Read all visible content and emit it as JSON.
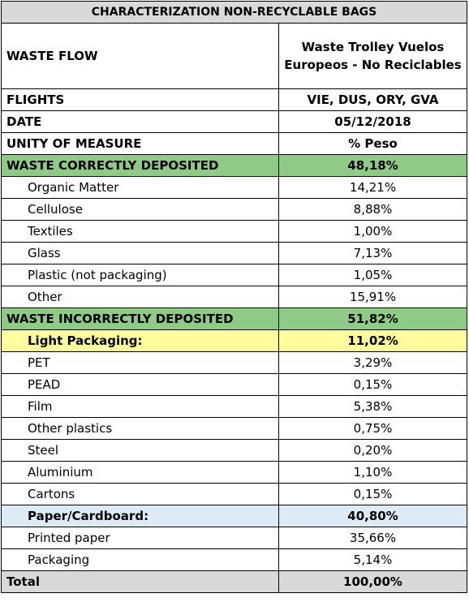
{
  "title": "CHARACTERIZATION NON-RECYCLABLE BAGS",
  "header": {
    "label": "WASTE FLOW",
    "value_line1": "Waste Trolley Vuelos",
    "value_line2": "Europeos - No Reciclables"
  },
  "info_rows": [
    {
      "label": "FLIGHTS",
      "value": "VIE, DUS, ORY, GVA"
    },
    {
      "label": "DATE",
      "value": "05/12/2018"
    },
    {
      "label": "UNITY OF MEASURE",
      "value": "% Peso"
    }
  ],
  "correct": {
    "label": "WASTE CORRECTLY DEPOSITED",
    "value": "48,18%",
    "items": [
      {
        "label": "Organic Matter",
        "value": "14,21%"
      },
      {
        "label": "Cellulose",
        "value": "8,88%"
      },
      {
        "label": "Textiles",
        "value": "1,00%"
      },
      {
        "label": "Glass",
        "value": "7,13%"
      },
      {
        "label": "Plastic (not packaging)",
        "value": "1,05%"
      },
      {
        "label": "Other",
        "value": "15,91%"
      }
    ]
  },
  "incorrect": {
    "label": "WASTE INCORRECTLY DEPOSITED",
    "value": "51,82%",
    "light_packaging": {
      "label": "Light Packaging:",
      "value": "11,02%",
      "items": [
        {
          "label": "PET",
          "value": "3,29%"
        },
        {
          "label": "PEAD",
          "value": "0,15%"
        },
        {
          "label": "Film",
          "value": "5,38%"
        },
        {
          "label": "Other plastics",
          "value": "0,75%"
        },
        {
          "label": "Steel",
          "value": "0,20%"
        },
        {
          "label": "Aluminium",
          "value": "1,10%"
        },
        {
          "label": "Cartons",
          "value": "0,15%"
        }
      ]
    },
    "paper": {
      "label": "Paper/Cardboard:",
      "value": "40,80%",
      "items": [
        {
          "label": "Printed paper",
          "value": "35,66%"
        },
        {
          "label": "Packaging",
          "value": "5,14%"
        }
      ]
    }
  },
  "total": {
    "label": "Total",
    "value": "100,00%"
  },
  "colors": {
    "title_bg": "#d9d9d9",
    "correct_bg": "#8fcb86",
    "light_packaging_bg": "#fffc9e",
    "paper_bg": "#ddebf7",
    "total_bg": "#d9d9d9"
  }
}
